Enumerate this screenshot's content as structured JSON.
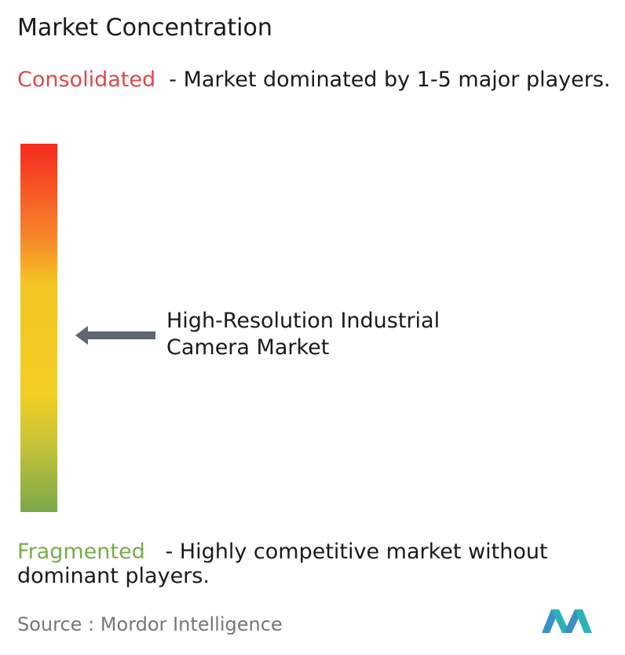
{
  "header": {
    "title": "Market Concentration"
  },
  "consolidated": {
    "label": "Consolidated",
    "description": "- Market dominated by 1-5 major players."
  },
  "marker": {
    "label": "High-Resolution Industrial Camera Market"
  },
  "fragmented": {
    "label": "Fragmented",
    "description": "- Highly competitive market without dominant players."
  },
  "source": {
    "prefix": "Source :",
    "name": "Mordor Intelligence"
  }
}
